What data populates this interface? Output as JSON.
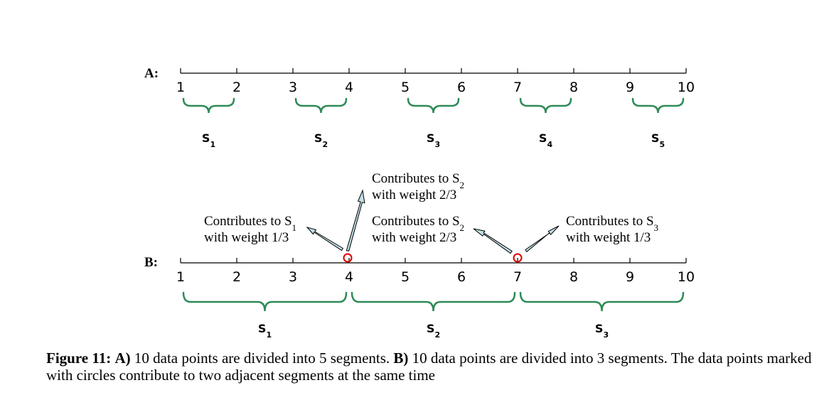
{
  "panel_a": {
    "label": "A:",
    "ticks": [
      "1",
      "2",
      "3",
      "4",
      "5",
      "6",
      "7",
      "8",
      "9",
      "10"
    ],
    "segments": [
      {
        "base": "S",
        "sub": "1"
      },
      {
        "base": "S",
        "sub": "2"
      },
      {
        "base": "S",
        "sub": "3"
      },
      {
        "base": "S",
        "sub": "4"
      },
      {
        "base": "S",
        "sub": "5"
      }
    ]
  },
  "panel_b": {
    "label": "B:",
    "ticks": [
      "1",
      "2",
      "3",
      "4",
      "5",
      "6",
      "7",
      "8",
      "9",
      "10"
    ],
    "segments": [
      {
        "base": "S",
        "sub": "1"
      },
      {
        "base": "S",
        "sub": "2"
      },
      {
        "base": "S",
        "sub": "3"
      }
    ],
    "annotations": [
      {
        "line1_base": "Contributes to S",
        "line1_sub": "1",
        "line2": "with weight 1/3"
      },
      {
        "line1_base": "Contributes to S",
        "line1_sub": "2",
        "line2": "with weight 2/3"
      },
      {
        "line1_base": "Contributes to S",
        "line1_sub": "2",
        "line2": "with weight 2/3"
      },
      {
        "line1_base": "Contributes to S",
        "line1_sub": "3",
        "line2": "with weight 1/3"
      }
    ]
  },
  "colors": {
    "brace": "#2e8b57",
    "circle": "#dd0000",
    "arrow_fill": "#bfe0e6",
    "axis": "#000000"
  },
  "caption": {
    "label": "Figure 11:",
    "part_a_label": "A)",
    "part_a_text": " 10 data points are divided into 5 segments. ",
    "part_b_label": "B)",
    "part_b_text": " 10 data points are divided into 3 segments. The data points marked with circles contribute to two adjacent segments at the same time"
  }
}
